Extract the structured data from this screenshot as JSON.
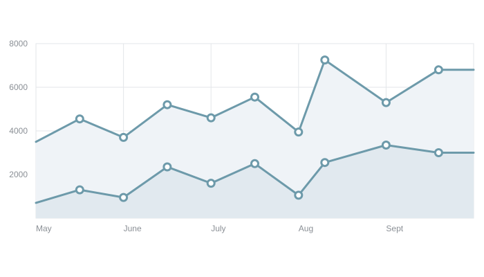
{
  "chart_data": {
    "type": "area",
    "x_ticks": [
      "May",
      "June",
      "July",
      "Aug",
      "Sept"
    ],
    "y_ticks": [
      "2000",
      "4000",
      "6000",
      "8000"
    ],
    "ylim": [
      0,
      8000
    ],
    "xlim": [
      0,
      5
    ],
    "grid": true,
    "series": [
      {
        "x": [
          0,
          0.5,
          1,
          1.5,
          2,
          2.5,
          3,
          3.3,
          4,
          4.6,
          5
        ],
        "values": [
          3500,
          4550,
          3700,
          5200,
          4600,
          5550,
          3950,
          7250,
          5300,
          6800,
          6800
        ],
        "markers": [
          false,
          true,
          true,
          true,
          true,
          true,
          true,
          true,
          true,
          true,
          false
        ],
        "line_color": "#6d9aaa",
        "fill_color": "#eff3f7"
      },
      {
        "x": [
          0,
          0.5,
          1,
          1.5,
          2,
          2.5,
          3,
          3.3,
          4,
          4.6,
          5
        ],
        "values": [
          700,
          1300,
          950,
          2350,
          1600,
          2500,
          1050,
          2550,
          3350,
          3000,
          3000
        ],
        "markers": [
          false,
          true,
          true,
          true,
          true,
          true,
          true,
          true,
          true,
          true,
          false
        ],
        "line_color": "#6d9aaa",
        "fill_color": "#e1e9ef"
      }
    ]
  }
}
